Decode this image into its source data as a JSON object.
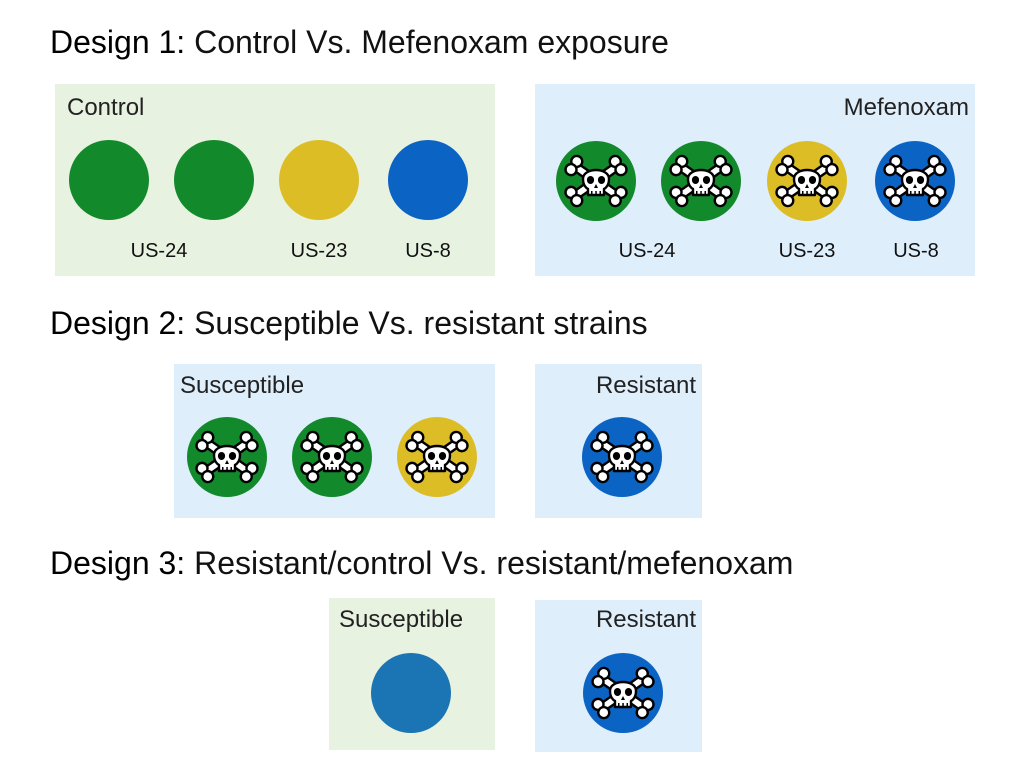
{
  "colors": {
    "green": "#12892a",
    "yellow": "#dcbd25",
    "blue": "#0b63c3",
    "steelblue": "#1b74b3",
    "panel_green": "#e7f2e1",
    "panel_blue": "#dfeefb"
  },
  "designs": [
    {
      "prefix": "Design 1:",
      "title": " Control Vs. Mefenoxam exposure",
      "panels": [
        {
          "label": "Control",
          "strains": [
            {
              "color": "green",
              "treated": false,
              "label": "US-24"
            },
            {
              "color": "green",
              "treated": false,
              "label": ""
            },
            {
              "color": "yellow",
              "treated": false,
              "label": "US-23"
            },
            {
              "color": "blue",
              "treated": false,
              "label": "US-8"
            }
          ]
        },
        {
          "label": "Mefenoxam",
          "strains": [
            {
              "color": "green",
              "treated": true,
              "icon": "skull-crossbones-icon",
              "label": "US-24"
            },
            {
              "color": "green",
              "treated": true,
              "icon": "skull-crossbones-icon",
              "label": ""
            },
            {
              "color": "yellow",
              "treated": true,
              "icon": "skull-crossbones-icon",
              "label": "US-23"
            },
            {
              "color": "blue",
              "treated": true,
              "icon": "skull-crossbones-icon",
              "label": "US-8"
            }
          ]
        }
      ]
    },
    {
      "prefix": "Design 2:",
      "title": " Susceptible Vs. resistant strains",
      "panels": [
        {
          "label": "Susceptible",
          "strains": [
            {
              "color": "green",
              "treated": true,
              "icon": "skull-crossbones-icon"
            },
            {
              "color": "green",
              "treated": true,
              "icon": "skull-crossbones-icon"
            },
            {
              "color": "yellow",
              "treated": true,
              "icon": "skull-crossbones-icon"
            }
          ]
        },
        {
          "label": "Resistant",
          "strains": [
            {
              "color": "blue",
              "treated": true,
              "icon": "skull-crossbones-icon"
            }
          ]
        }
      ]
    },
    {
      "prefix": "Design 3:",
      "title": " Resistant/control Vs. resistant/mefenoxam",
      "panels": [
        {
          "label": "Susceptible",
          "strains": [
            {
              "color": "steelblue",
              "treated": false
            }
          ]
        },
        {
          "label": "Resistant",
          "strains": [
            {
              "color": "blue",
              "treated": true,
              "icon": "skull-crossbones-icon"
            }
          ]
        }
      ]
    }
  ]
}
